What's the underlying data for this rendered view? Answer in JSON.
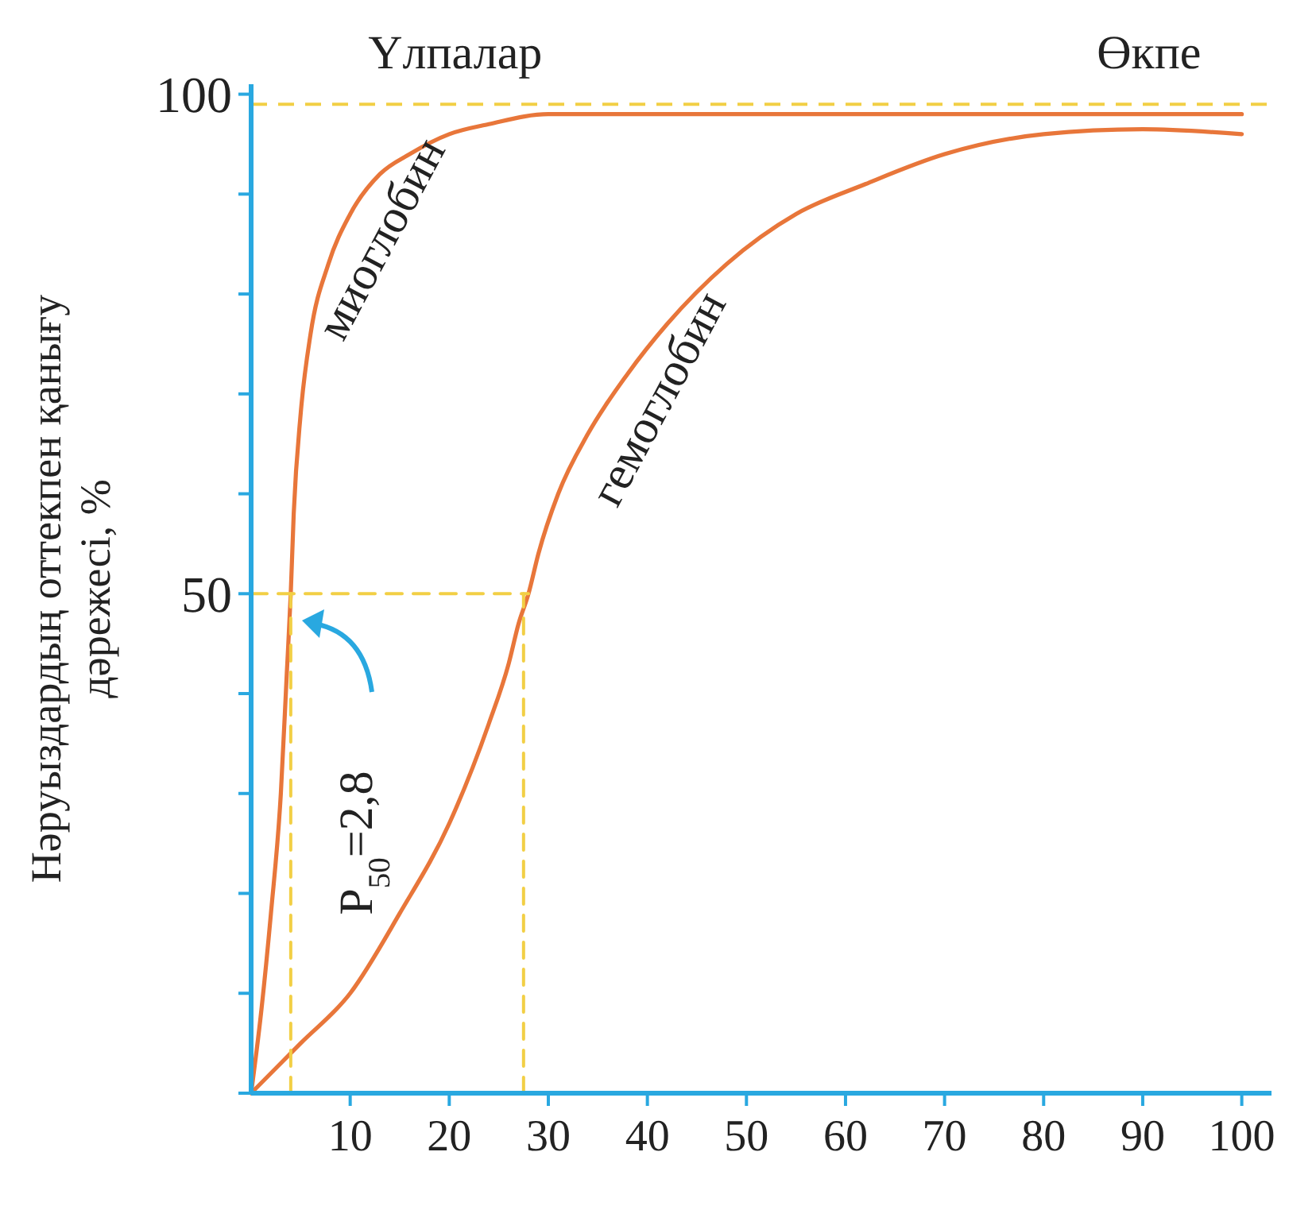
{
  "chart_data": {
    "type": "line",
    "ylabel": "Нәруыздардың оттекпен қанығу дәрежесі, %",
    "xlim": [
      0,
      103
    ],
    "ylim": [
      0,
      101
    ],
    "xticks": [
      10,
      20,
      30,
      40,
      50,
      60,
      70,
      80,
      90,
      100
    ],
    "yticks": [
      {
        "value": 0,
        "label": null
      },
      {
        "value": 10,
        "label": null
      },
      {
        "value": 20,
        "label": null
      },
      {
        "value": 30,
        "label": null
      },
      {
        "value": 40,
        "label": null
      },
      50,
      {
        "value": 60,
        "label": null
      },
      {
        "value": 70,
        "label": null
      },
      {
        "value": 80,
        "label": null
      },
      {
        "value": 90,
        "label": null
      },
      100
    ],
    "marker": "none",
    "grid": false,
    "series": [
      {
        "name": "миоглобин",
        "color": "#e8763a",
        "x": [
          0,
          1,
          2,
          3,
          3.6,
          4,
          4.3,
          5,
          6,
          7.8,
          10,
          13,
          16,
          20,
          24,
          30,
          40,
          50,
          60,
          70,
          80,
          90,
          100
        ],
        "values": [
          0,
          8,
          18,
          30,
          42,
          50,
          58,
          68,
          76,
          83,
          88,
          92,
          94,
          96,
          97,
          98,
          98,
          98,
          98,
          98,
          98,
          98,
          98
        ]
      },
      {
        "name": "гемоглобин",
        "color": "#e8763a",
        "x": [
          0,
          5,
          10,
          15,
          20,
          24,
          26,
          27,
          28,
          29,
          31,
          34,
          38,
          42,
          48,
          55,
          62,
          70,
          80,
          90,
          100
        ],
        "values": [
          0,
          5,
          10,
          18,
          27,
          37,
          43,
          47,
          50,
          54,
          60,
          66,
          72,
          77,
          83,
          88,
          91,
          94,
          96,
          96.5,
          96
        ]
      },
      {
        "color": "#f2cf45",
        "line_style": "dashed",
        "x": [
          0,
          28
        ],
        "values": [
          50,
          50
        ]
      },
      {
        "color": "#f2cf45",
        "line_style": "dashed",
        "x": [
          4,
          4
        ],
        "values": [
          0,
          50
        ]
      },
      {
        "color": "#f2cf45",
        "line_style": "dashed",
        "x": [
          27.5,
          27.5
        ],
        "values": [
          0,
          50
        ]
      }
    ],
    "ref_lines": [
      {
        "axis": "y",
        "value": 99,
        "color": "#f2cf45",
        "line_style": "dashed"
      }
    ],
    "annotations": [
      "Үлпалар",
      "Өкпе",
      "P$_{50}$=2,8"
    ]
  }
}
